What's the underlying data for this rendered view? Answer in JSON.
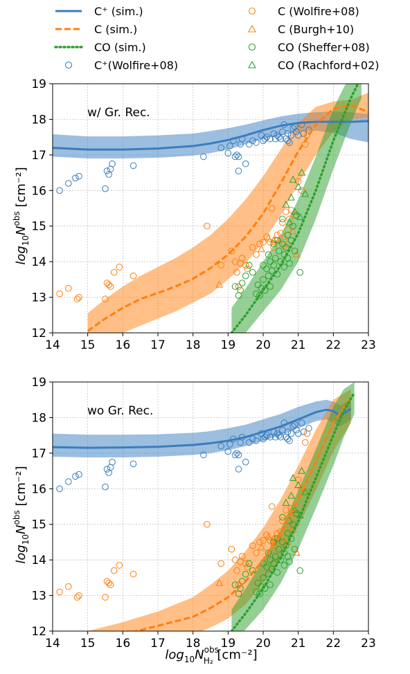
{
  "colors": {
    "cplus": "#3a7dbf",
    "c": "#ff7f0e",
    "co": "#2ca02c"
  },
  "legend": {
    "left": [
      {
        "label": "C⁺ (sim.)",
        "style": "solid",
        "color": "#3a7dbf"
      },
      {
        "label": "C  (sim.)",
        "style": "dashed",
        "color": "#ff7f0e"
      },
      {
        "label": "CO (sim.)",
        "style": "dotted",
        "color": "#2ca02c"
      },
      {
        "label": "C⁺(Wolfire+08)",
        "style": "circle",
        "color": "#3a7dbf"
      }
    ],
    "right": [
      {
        "label": "C (Wolfire+08)",
        "style": "circle",
        "color": "#ff7f0e"
      },
      {
        "label": "C (Burgh+10)",
        "style": "triangle",
        "color": "#ff7f0e"
      },
      {
        "label": "CO (Sheffer+08)",
        "style": "circle",
        "color": "#2ca02c"
      },
      {
        "label": "CO (Rachford+02)",
        "style": "triangle",
        "color": "#2ca02c"
      }
    ]
  },
  "axis_labels": {
    "y_prefix": "log",
    "y_sub": "10",
    "y_main": "N",
    "y_sup": "obs",
    "y_unit": " [cm⁻²]",
    "x_prefix": "log",
    "x_sub": "10",
    "x_main": "N",
    "x_sup": "obs",
    "x_sub2": "H₂",
    "x_unit": " [cm⁻²]"
  },
  "chart_data": [
    {
      "type": "line",
      "annotation": "w/ Gr. Rec.",
      "xlim": [
        14,
        23
      ],
      "ylim": [
        12,
        19
      ],
      "xticks": [
        14,
        15,
        16,
        17,
        18,
        19,
        20,
        21,
        22,
        23
      ],
      "yticks": [
        12,
        13,
        14,
        15,
        16,
        17,
        18,
        19
      ],
      "grid": true,
      "series": [
        {
          "name": "C⁺ (sim.)",
          "x": [
            14,
            15,
            16,
            17,
            18,
            18.5,
            19,
            19.5,
            20,
            20.5,
            21,
            21.5,
            22,
            22.5,
            23
          ],
          "y": [
            17.2,
            17.15,
            17.15,
            17.18,
            17.25,
            17.32,
            17.42,
            17.55,
            17.7,
            17.82,
            17.9,
            17.93,
            17.93,
            17.93,
            17.95
          ],
          "lower": [
            16.95,
            16.9,
            16.9,
            16.92,
            16.98,
            17.05,
            17.15,
            17.3,
            17.45,
            17.55,
            17.65,
            17.68,
            17.62,
            17.45,
            17.35
          ],
          "upper": [
            17.58,
            17.52,
            17.52,
            17.55,
            17.6,
            17.67,
            17.75,
            17.85,
            17.97,
            18.08,
            18.16,
            18.2,
            18.22,
            18.2,
            18.15
          ]
        },
        {
          "name": "C  (sim.)",
          "x": [
            15,
            15.5,
            16,
            16.5,
            17,
            17.5,
            18,
            18.5,
            19,
            19.5,
            20,
            20.5,
            21,
            21.5,
            22,
            22.5,
            23
          ],
          "y": [
            12.05,
            12.4,
            12.7,
            12.95,
            13.12,
            13.3,
            13.52,
            13.82,
            14.2,
            14.7,
            15.35,
            16.2,
            17.1,
            17.85,
            18.3,
            18.4,
            18.2
          ],
          "lower": [
            11.6,
            11.8,
            12.0,
            12.2,
            12.4,
            12.6,
            12.85,
            13.1,
            13.5,
            13.95,
            14.55,
            15.3,
            16.2,
            17.0,
            17.65,
            18.0,
            18.05
          ],
          "upper": [
            12.55,
            12.95,
            13.3,
            13.6,
            13.85,
            14.1,
            14.4,
            14.75,
            15.2,
            15.75,
            16.4,
            17.15,
            17.9,
            18.35,
            18.5,
            18.55,
            18.75
          ]
        },
        {
          "name": "CO (sim.)",
          "x": [
            19.1,
            19.5,
            20,
            20.5,
            21,
            21.5,
            22,
            22.5,
            22.8
          ],
          "y": [
            12.0,
            12.5,
            13.2,
            13.9,
            14.8,
            16.0,
            17.4,
            18.6,
            19.2
          ],
          "lower": [
            11.6,
            12.0,
            12.6,
            13.2,
            14.0,
            15.2,
            16.6,
            17.9,
            18.6
          ],
          "upper": [
            12.7,
            13.25,
            14.0,
            14.75,
            15.75,
            16.95,
            18.3,
            19.3,
            19.7
          ]
        }
      ]
    },
    {
      "type": "line",
      "annotation": "wo Gr. Rec.",
      "xlim": [
        14,
        23
      ],
      "ylim": [
        12,
        19
      ],
      "xticks": [
        14,
        15,
        16,
        17,
        18,
        19,
        20,
        21,
        22,
        23
      ],
      "yticks": [
        12,
        13,
        14,
        15,
        16,
        17,
        18,
        19
      ],
      "grid": true,
      "series": [
        {
          "name": "C⁺ (sim.)",
          "x": [
            14,
            15,
            16,
            17,
            18,
            18.5,
            19,
            19.5,
            20,
            20.5,
            21,
            21.5,
            21.8,
            22,
            22.2,
            22.5
          ],
          "y": [
            17.17,
            17.15,
            17.16,
            17.18,
            17.23,
            17.28,
            17.35,
            17.45,
            17.6,
            17.75,
            17.95,
            18.15,
            18.22,
            18.18,
            18.05,
            18.25
          ],
          "lower": [
            16.9,
            16.88,
            16.88,
            16.9,
            16.95,
            17.0,
            17.08,
            17.2,
            17.35,
            17.5,
            17.7,
            17.9,
            17.95,
            17.85,
            17.75,
            17.95
          ],
          "upper": [
            17.55,
            17.52,
            17.52,
            17.53,
            17.57,
            17.62,
            17.7,
            17.8,
            17.95,
            18.1,
            18.3,
            18.45,
            18.5,
            18.45,
            18.35,
            18.5
          ]
        },
        {
          "name": "C  (sim.)",
          "x": [
            15,
            16,
            17,
            18,
            18.5,
            19,
            19.5,
            20,
            20.5,
            21,
            21.5,
            22,
            22.5
          ],
          "y": [
            11.65,
            11.9,
            12.15,
            12.4,
            12.65,
            12.95,
            13.4,
            14.0,
            14.75,
            15.7,
            16.75,
            17.85,
            18.55
          ],
          "lower": [
            11.3,
            11.5,
            11.7,
            11.9,
            12.1,
            12.35,
            12.75,
            13.35,
            14.05,
            14.95,
            15.95,
            17.05,
            17.85
          ],
          "upper": [
            12.0,
            12.25,
            12.55,
            12.95,
            13.3,
            13.7,
            14.25,
            14.9,
            15.7,
            16.65,
            17.65,
            18.5,
            18.8
          ]
        },
        {
          "name": "CO (sim.)",
          "x": [
            19.1,
            19.5,
            20,
            20.5,
            21,
            21.5,
            22,
            22.3,
            22.6
          ],
          "y": [
            12.0,
            12.5,
            13.2,
            14.05,
            15.1,
            16.3,
            17.5,
            18.2,
            18.7
          ],
          "lower": [
            11.6,
            12.05,
            12.6,
            13.35,
            14.3,
            15.45,
            16.65,
            17.45,
            18.1
          ],
          "upper": [
            12.6,
            13.2,
            14.0,
            14.85,
            15.95,
            17.1,
            18.3,
            18.8,
            19.0
          ]
        }
      ]
    }
  ],
  "observations": {
    "cplus_wolfire": [
      [
        14.2,
        16.0
      ],
      [
        14.45,
        16.2
      ],
      [
        14.65,
        16.35
      ],
      [
        14.75,
        16.4
      ],
      [
        15.5,
        16.05
      ],
      [
        15.55,
        16.55
      ],
      [
        15.6,
        16.45
      ],
      [
        15.65,
        16.6
      ],
      [
        15.7,
        16.75
      ],
      [
        16.3,
        16.7
      ],
      [
        18.3,
        16.95
      ],
      [
        18.8,
        17.2
      ],
      [
        19.0,
        17.05
      ],
      [
        19.05,
        17.25
      ],
      [
        19.15,
        17.4
      ],
      [
        19.2,
        16.95
      ],
      [
        19.25,
        17.0
      ],
      [
        19.3,
        16.95
      ],
      [
        19.3,
        16.55
      ],
      [
        19.35,
        17.3
      ],
      [
        19.4,
        17.45
      ],
      [
        19.5,
        16.75
      ],
      [
        19.6,
        17.3
      ],
      [
        19.7,
        17.4
      ],
      [
        19.8,
        17.35
      ],
      [
        19.95,
        17.55
      ],
      [
        20.0,
        17.4
      ],
      [
        20.05,
        17.45
      ],
      [
        20.1,
        17.5
      ],
      [
        20.2,
        17.45
      ],
      [
        20.3,
        17.6
      ],
      [
        20.35,
        17.45
      ],
      [
        20.4,
        17.55
      ],
      [
        20.45,
        17.5
      ],
      [
        20.5,
        17.45
      ],
      [
        20.55,
        17.65
      ],
      [
        20.6,
        17.85
      ],
      [
        20.65,
        17.45
      ],
      [
        20.7,
        17.6
      ],
      [
        20.7,
        17.4
      ],
      [
        20.75,
        17.35
      ],
      [
        20.8,
        17.55
      ],
      [
        20.85,
        17.75
      ],
      [
        20.9,
        17.8
      ],
      [
        20.95,
        17.65
      ],
      [
        21.0,
        17.55
      ],
      [
        21.1,
        17.85
      ],
      [
        21.15,
        17.6
      ],
      [
        21.3,
        17.7
      ]
    ],
    "c_wolfire": [
      [
        14.2,
        13.1
      ],
      [
        14.45,
        13.25
      ],
      [
        14.7,
        12.95
      ],
      [
        14.75,
        13.0
      ],
      [
        15.5,
        12.95
      ],
      [
        15.55,
        13.4
      ],
      [
        15.6,
        13.35
      ],
      [
        15.65,
        13.3
      ],
      [
        15.75,
        13.7
      ],
      [
        15.9,
        13.85
      ],
      [
        16.3,
        13.6
      ],
      [
        18.4,
        15.0
      ],
      [
        18.8,
        13.9
      ],
      [
        19.1,
        14.3
      ],
      [
        19.2,
        14.0
      ],
      [
        19.25,
        13.7
      ],
      [
        19.3,
        13.3
      ],
      [
        19.35,
        13.95
      ],
      [
        19.4,
        14.1
      ],
      [
        19.5,
        13.9
      ],
      [
        19.55,
        13.8
      ],
      [
        19.7,
        14.4
      ],
      [
        19.8,
        14.2
      ],
      [
        19.9,
        14.5
      ],
      [
        20.0,
        14.55
      ],
      [
        20.1,
        14.7
      ],
      [
        20.2,
        14.55
      ],
      [
        20.25,
        15.5
      ],
      [
        20.3,
        14.4
      ],
      [
        20.35,
        14.6
      ],
      [
        20.4,
        14.75
      ],
      [
        20.5,
        14.8
      ],
      [
        20.55,
        15.1
      ],
      [
        20.6,
        14.45
      ],
      [
        20.65,
        15.4
      ],
      [
        20.7,
        14.9
      ],
      [
        20.75,
        15.2
      ],
      [
        20.8,
        15.45
      ],
      [
        20.85,
        15.0
      ],
      [
        20.9,
        15.3
      ],
      [
        21.0,
        16.25
      ],
      [
        21.1,
        16.0
      ],
      [
        21.2,
        17.3
      ],
      [
        21.25,
        17.55
      ]
    ],
    "c_burgh": [
      [
        18.75,
        13.35
      ],
      [
        19.95,
        14.35
      ],
      [
        20.15,
        14.65
      ],
      [
        20.3,
        14.6
      ],
      [
        20.45,
        14.6
      ],
      [
        20.6,
        14.7
      ],
      [
        20.7,
        14.5
      ],
      [
        20.85,
        14.85
      ],
      [
        20.95,
        14.2
      ]
    ],
    "co_sheffer": [
      [
        19.2,
        13.3
      ],
      [
        19.3,
        13.05
      ],
      [
        19.35,
        13.2
      ],
      [
        19.4,
        13.4
      ],
      [
        19.5,
        13.6
      ],
      [
        19.6,
        13.9
      ],
      [
        19.7,
        13.7
      ],
      [
        19.8,
        13.1
      ],
      [
        19.85,
        13.35
      ],
      [
        19.9,
        13.05
      ],
      [
        19.95,
        13.25
      ],
      [
        20.0,
        13.5
      ],
      [
        20.05,
        13.2
      ],
      [
        20.1,
        13.8
      ],
      [
        20.15,
        13.6
      ],
      [
        20.2,
        14.0
      ],
      [
        20.25,
        13.75
      ],
      [
        20.3,
        13.9
      ],
      [
        20.35,
        14.1
      ],
      [
        20.4,
        13.65
      ],
      [
        20.45,
        14.3
      ],
      [
        20.5,
        14.0
      ],
      [
        20.55,
        14.5
      ],
      [
        20.6,
        14.2
      ],
      [
        20.65,
        14.4
      ],
      [
        20.7,
        14.75
      ],
      [
        20.75,
        13.95
      ],
      [
        20.8,
        14.6
      ],
      [
        20.85,
        15.0
      ],
      [
        20.9,
        14.3
      ],
      [
        20.95,
        15.3
      ],
      [
        21.05,
        13.7
      ],
      [
        20.2,
        13.3
      ],
      [
        20.0,
        13.9
      ],
      [
        20.6,
        13.85
      ],
      [
        20.4,
        14.6
      ],
      [
        20.7,
        14.1
      ],
      [
        20.3,
        14.5
      ],
      [
        20.55,
        15.2
      ],
      [
        20.15,
        14.2
      ]
    ],
    "co_rachford": [
      [
        20.65,
        15.6
      ],
      [
        20.8,
        15.8
      ],
      [
        20.85,
        16.3
      ],
      [
        20.9,
        15.4
      ],
      [
        21.0,
        16.1
      ],
      [
        21.1,
        16.5
      ],
      [
        21.2,
        15.9
      ],
      [
        20.75,
        15.1
      ],
      [
        21.05,
        15.25
      ]
    ]
  }
}
